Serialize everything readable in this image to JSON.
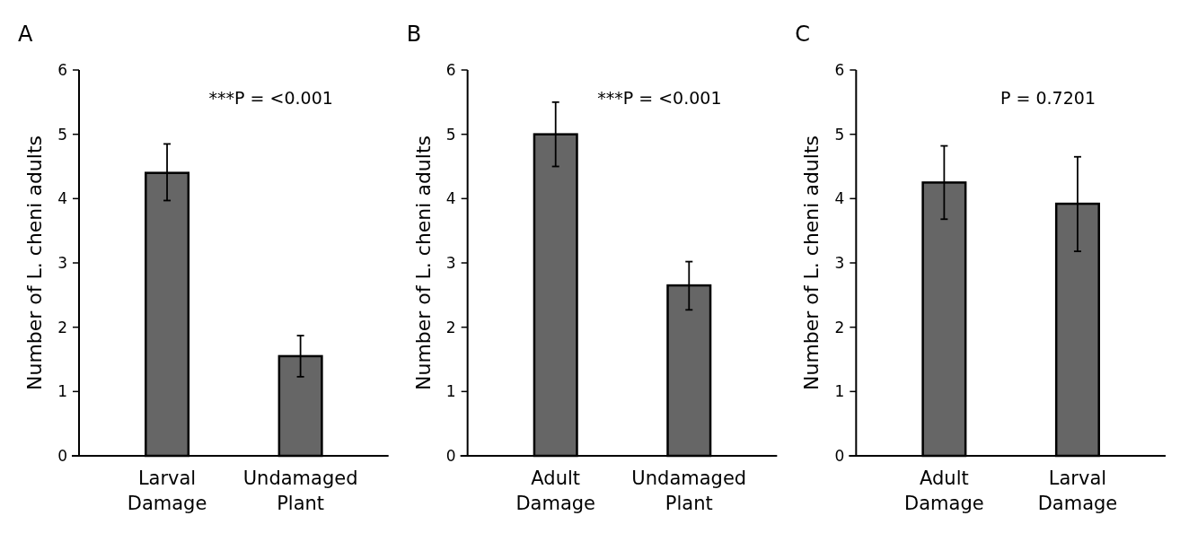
{
  "chart_data": [
    {
      "type": "bar",
      "title": "A",
      "ylabel": "Number of L. cheni adults",
      "categories": [
        "Larval Damage",
        "Undamaged Plant"
      ],
      "values": [
        4.4,
        1.55
      ],
      "errors": [
        [
          3.97,
          4.85
        ],
        [
          1.23,
          1.87
        ]
      ],
      "color": "#666666",
      "ylim": [
        0,
        6
      ],
      "yticks": [
        0,
        1,
        2,
        3,
        4,
        5,
        6
      ],
      "annotations": [
        "***P = <0.001"
      ]
    },
    {
      "type": "bar",
      "title": "B",
      "ylabel": "Number of L. cheni adults",
      "categories": [
        "Adult Damage",
        "Undamaged Plant"
      ],
      "values": [
        5.0,
        2.65
      ],
      "errors": [
        [
          4.5,
          5.5
        ],
        [
          2.27,
          3.02
        ]
      ],
      "color": "#666666",
      "ylim": [
        0,
        6
      ],
      "yticks": [
        0,
        1,
        2,
        3,
        4,
        5,
        6
      ],
      "annotations": [
        "***P = <0.001"
      ]
    },
    {
      "type": "bar",
      "title": "C",
      "ylabel": "Number of L. cheni adults",
      "categories": [
        "Adult Damage",
        "Larval Damage"
      ],
      "values": [
        4.25,
        3.92
      ],
      "errors": [
        [
          3.68,
          4.82
        ],
        [
          3.18,
          4.65
        ]
      ],
      "color": "#666666",
      "ylim": [
        0,
        6
      ],
      "yticks": [
        0,
        1,
        2,
        3,
        4,
        5,
        6
      ],
      "annotations": [
        "P = 0.7201"
      ]
    }
  ]
}
